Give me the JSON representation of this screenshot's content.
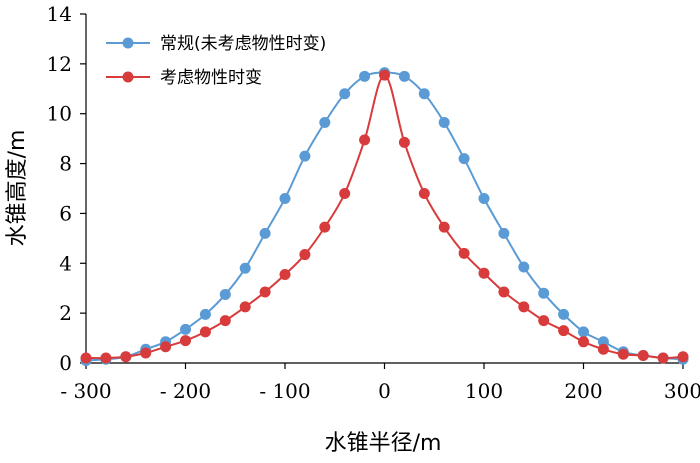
{
  "chart_data": {
    "type": "line",
    "xlabel": "水锥半径/m",
    "ylabel": "水锥高度/m",
    "xlim": [
      -300,
      300
    ],
    "ylim": [
      0,
      14
    ],
    "x_ticks": [
      -300,
      -200,
      -100,
      0,
      100,
      200,
      300
    ],
    "x_tick_labels": [
      "- 300",
      "- 200",
      "- 100",
      "0",
      "100",
      "200",
      "300"
    ],
    "y_ticks": [
      0,
      2,
      4,
      6,
      8,
      10,
      12,
      14
    ],
    "grid": false,
    "legend_position": "top-left",
    "series": [
      {
        "name": "常规(未考虑物性时变)",
        "color": "#5B9BD5",
        "x": [
          -300,
          -280,
          -260,
          -240,
          -220,
          -200,
          -180,
          -160,
          -140,
          -120,
          -100,
          -80,
          -60,
          -40,
          -20,
          0,
          20,
          40,
          60,
          80,
          100,
          120,
          140,
          160,
          180,
          200,
          220,
          240,
          260,
          280,
          300
        ],
        "y": [
          0.1,
          0.15,
          0.25,
          0.55,
          0.85,
          1.35,
          1.95,
          2.75,
          3.8,
          5.2,
          6.6,
          8.3,
          9.65,
          10.8,
          11.5,
          11.65,
          11.5,
          10.8,
          9.65,
          8.2,
          6.6,
          5.2,
          3.85,
          2.8,
          1.95,
          1.25,
          0.85,
          0.45,
          0.3,
          0.2,
          0.15
        ]
      },
      {
        "name": "考虑物性时变",
        "color": "#D83B3B",
        "x": [
          -300,
          -280,
          -260,
          -240,
          -220,
          -200,
          -180,
          -160,
          -140,
          -120,
          -100,
          -80,
          -60,
          -40,
          -20,
          0,
          20,
          40,
          60,
          80,
          100,
          120,
          140,
          160,
          180,
          200,
          220,
          240,
          260,
          280,
          300
        ],
        "y": [
          0.2,
          0.2,
          0.25,
          0.4,
          0.65,
          0.9,
          1.25,
          1.7,
          2.25,
          2.85,
          3.55,
          4.35,
          5.45,
          6.8,
          8.95,
          11.55,
          8.85,
          6.8,
          5.45,
          4.4,
          3.6,
          2.85,
          2.25,
          1.7,
          1.3,
          0.85,
          0.55,
          0.35,
          0.3,
          0.2,
          0.25
        ]
      }
    ]
  }
}
